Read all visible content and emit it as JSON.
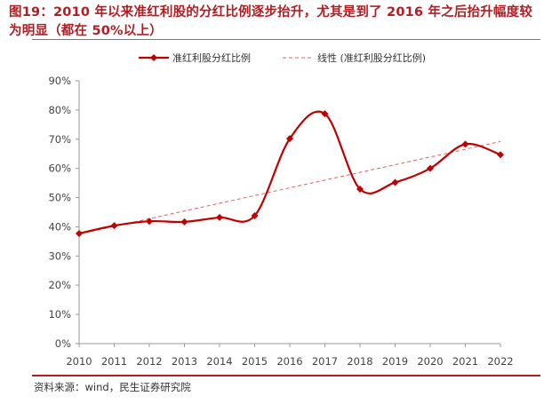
{
  "header": {
    "title": "图19：2010 年以来准红利股的分红比例逐步抬升，尤其是到了 2016 年之后抬升幅度较为明显（都在 50%以上）"
  },
  "footer": {
    "source": "资料来源：wind，民生证券研究院"
  },
  "chart_data": {
    "type": "line",
    "title": "",
    "xlabel": "",
    "ylabel": "",
    "x": [
      "2010",
      "2011",
      "2012",
      "2013",
      "2014",
      "2015",
      "2016",
      "2017",
      "2018",
      "2019",
      "2020",
      "2021",
      "2022"
    ],
    "series": [
      {
        "name": "准红利股分红比例",
        "values": [
          37.7,
          40.4,
          41.9,
          41.7,
          43.2,
          43.8,
          70.2,
          78.7,
          52.9,
          55.2,
          60.0,
          68.3,
          64.7
        ],
        "color": "#c00000",
        "marker": "diamond"
      },
      {
        "name": "线性 (准红利股分红比例)",
        "values": [
          37.5,
          40.1,
          42.8,
          45.4,
          48.1,
          50.7,
          53.3,
          56.0,
          58.6,
          61.3,
          63.9,
          66.5,
          69.2
        ],
        "color": "#e06060",
        "style": "dashed"
      }
    ],
    "y_ticks": [
      "0%",
      "10%",
      "20%",
      "30%",
      "40%",
      "50%",
      "60%",
      "70%",
      "80%",
      "90%"
    ],
    "ylim": [
      0,
      90
    ],
    "legend": "top-center",
    "grid": false
  }
}
